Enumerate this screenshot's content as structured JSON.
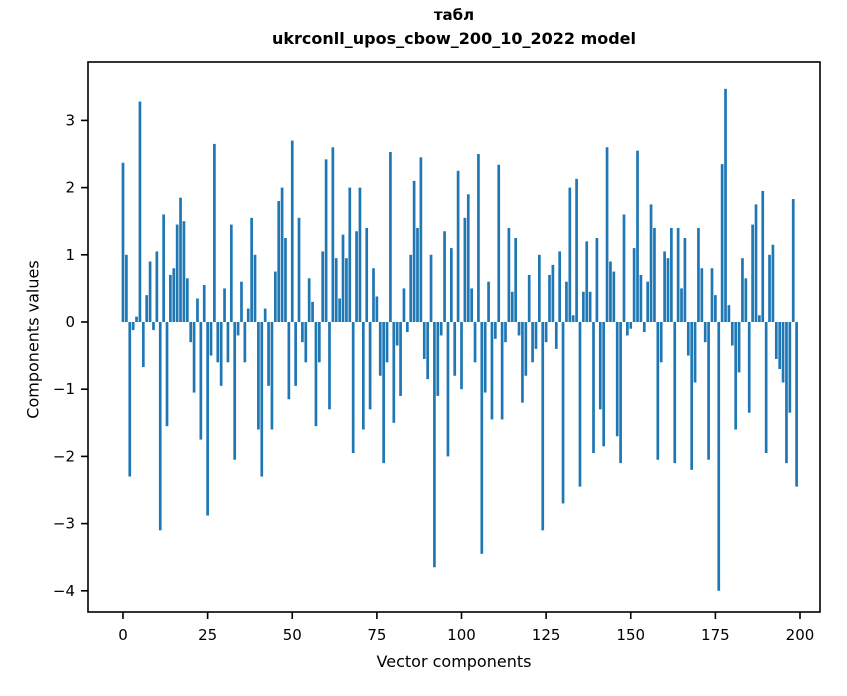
{
  "chart_data": {
    "type": "bar",
    "title": "табл",
    "subtitle": "ukrconll_upos_cbow_200_10_2022 model",
    "xlabel": "Vector components",
    "ylabel": "Components values",
    "bar_color": "#1f77b4",
    "background_color": "#ffffff",
    "grid": false,
    "legend": null,
    "xlim": [
      -10.3,
      205.9
    ],
    "ylim": [
      -4.32,
      3.87
    ],
    "x_ticks": [
      {
        "v": 0,
        "label": "0"
      },
      {
        "v": 25,
        "label": "25"
      },
      {
        "v": 50,
        "label": "50"
      },
      {
        "v": 75,
        "label": "75"
      },
      {
        "v": 100,
        "label": "100"
      },
      {
        "v": 125,
        "label": "125"
      },
      {
        "v": 150,
        "label": "150"
      },
      {
        "v": 175,
        "label": "175"
      },
      {
        "v": 200,
        "label": "200"
      }
    ],
    "y_ticks": [
      {
        "v": 3,
        "label": "3"
      },
      {
        "v": 2,
        "label": "2"
      },
      {
        "v": 1,
        "label": "1"
      },
      {
        "v": 0,
        "label": "0"
      },
      {
        "v": -1,
        "label": "−1"
      },
      {
        "v": -2,
        "label": "−2"
      },
      {
        "v": -3,
        "label": "−3"
      },
      {
        "v": -4,
        "label": "−4"
      }
    ],
    "x": "vector component index 0..199",
    "values": [
      2.37,
      1.0,
      -2.3,
      -0.12,
      0.08,
      3.28,
      -0.67,
      0.4,
      0.9,
      -0.12,
      1.05,
      -3.1,
      1.6,
      -1.55,
      0.7,
      0.8,
      1.45,
      1.85,
      1.5,
      0.65,
      -0.3,
      -1.05,
      0.35,
      -1.75,
      0.55,
      -2.88,
      -0.5,
      2.65,
      -0.6,
      -0.95,
      0.5,
      -0.6,
      1.45,
      -2.05,
      -0.2,
      0.6,
      -0.6,
      0.2,
      1.55,
      1.0,
      -1.6,
      -2.3,
      0.2,
      -0.95,
      -1.6,
      0.75,
      1.8,
      2.0,
      1.25,
      -1.15,
      2.7,
      -0.95,
      1.55,
      -0.3,
      -0.6,
      0.65,
      0.3,
      -1.55,
      -0.6,
      1.05,
      2.42,
      -1.3,
      2.6,
      0.95,
      0.35,
      1.3,
      0.95,
      2.0,
      -1.95,
      1.35,
      2.0,
      -1.6,
      1.4,
      -1.3,
      0.8,
      0.38,
      -0.8,
      -2.1,
      -0.6,
      2.53,
      -1.5,
      -0.35,
      -1.1,
      0.5,
      -0.15,
      1.0,
      2.1,
      1.4,
      2.45,
      -0.55,
      -0.85,
      1.0,
      -3.65,
      -1.1,
      -0.2,
      1.35,
      -2.0,
      1.1,
      -0.8,
      2.25,
      -1.0,
      1.55,
      1.9,
      0.5,
      -0.6,
      2.5,
      -3.45,
      -1.05,
      0.6,
      -1.45,
      -0.25,
      2.34,
      -1.45,
      -0.3,
      1.4,
      0.45,
      1.25,
      -0.2,
      -1.2,
      -0.8,
      0.7,
      -0.6,
      -0.4,
      1.0,
      -3.1,
      -0.3,
      0.7,
      0.85,
      -0.4,
      1.05,
      -2.7,
      0.6,
      2.0,
      0.1,
      2.13,
      -2.45,
      0.45,
      1.2,
      0.45,
      -1.95,
      1.25,
      -1.3,
      -1.85,
      2.6,
      0.9,
      0.75,
      -1.7,
      -2.1,
      1.6,
      -0.2,
      -0.1,
      1.1,
      2.55,
      0.7,
      -0.15,
      0.6,
      1.75,
      1.4,
      -2.05,
      -0.6,
      1.05,
      0.95,
      1.4,
      -2.1,
      1.4,
      0.5,
      1.25,
      -0.5,
      -2.2,
      -0.9,
      1.4,
      0.8,
      -0.3,
      -2.05,
      0.8,
      0.4,
      -4.0,
      2.35,
      3.47,
      0.25,
      -0.35,
      -1.6,
      -0.75,
      0.95,
      0.65,
      -1.35,
      1.45,
      1.75,
      0.1,
      1.95,
      -1.95,
      1.0,
      1.15,
      -0.55,
      -0.7,
      -0.9,
      -2.1,
      -1.35,
      1.83,
      -2.45
    ]
  }
}
